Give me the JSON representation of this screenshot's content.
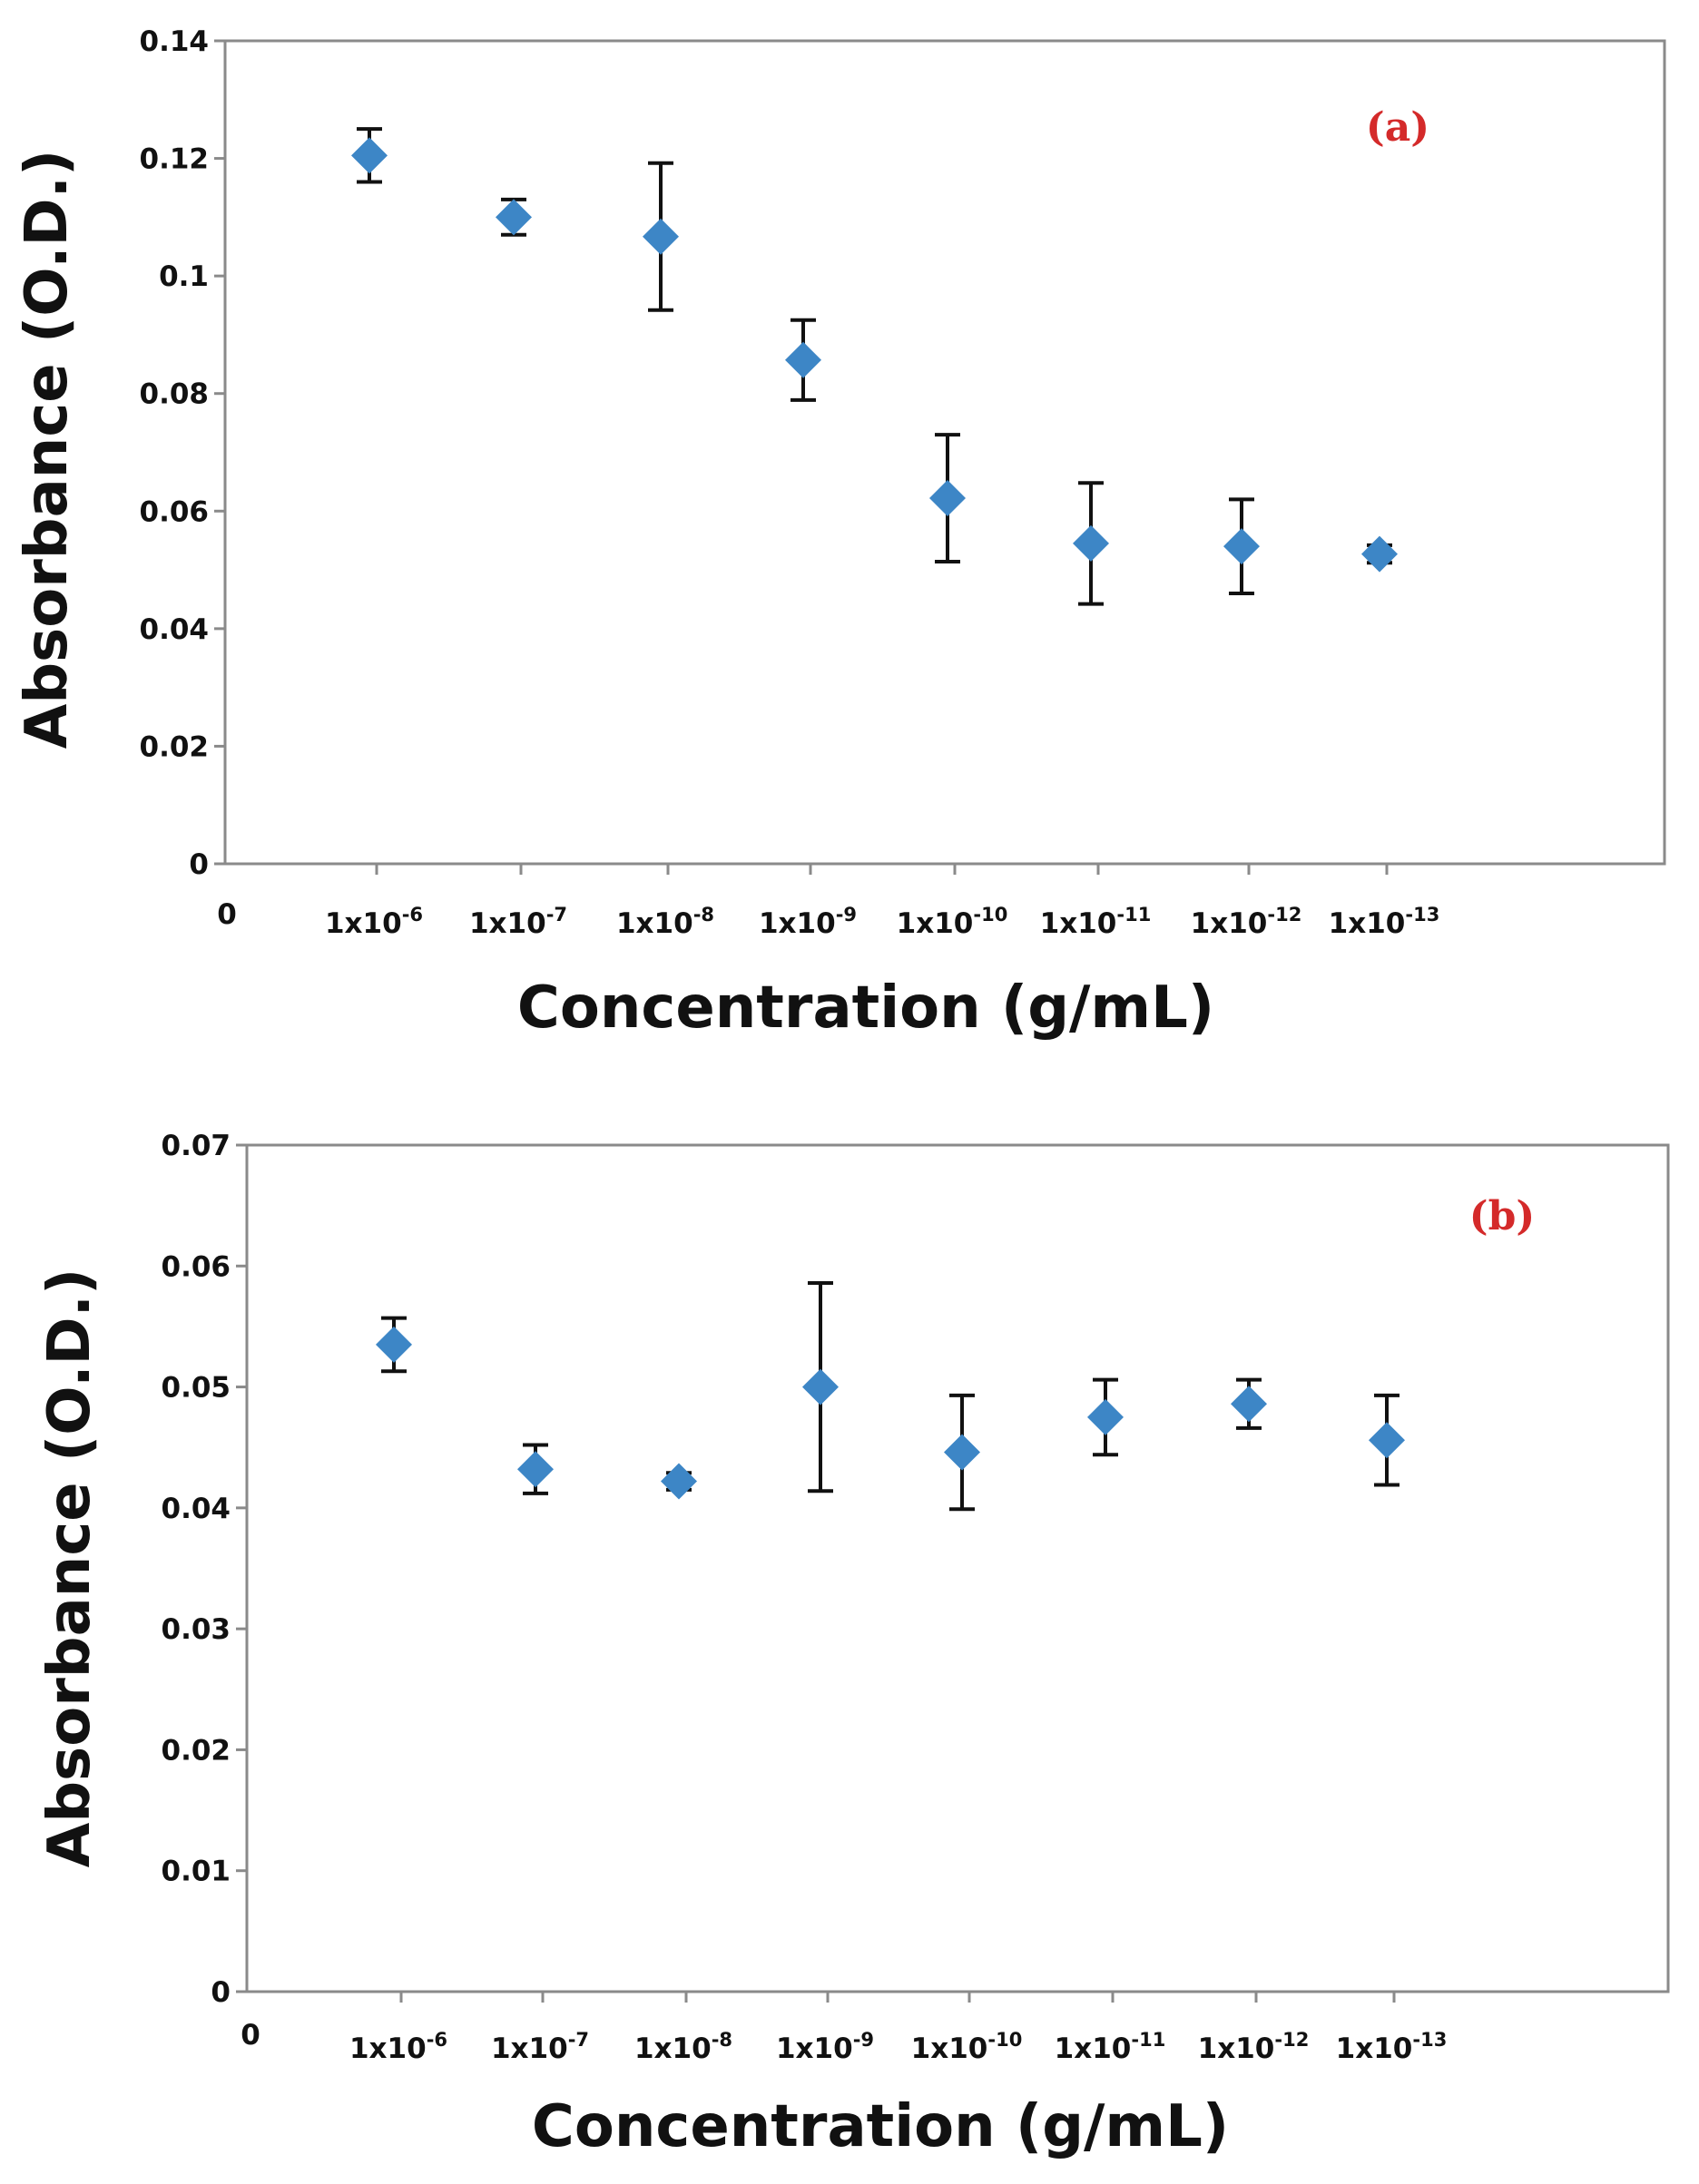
{
  "chart_data": [
    {
      "type": "scatter",
      "panel_label": "(a)",
      "title": "",
      "xlabel": "Concentration (g/mL)",
      "ylabel": "Absorbance (O.D.)",
      "x_origin_label": "0",
      "categories": [
        {
          "base": "1x10",
          "exp": "-6"
        },
        {
          "base": "1x10",
          "exp": "-7"
        },
        {
          "base": "1x10",
          "exp": "-8"
        },
        {
          "base": "1x10",
          "exp": "-9"
        },
        {
          "base": "1x10",
          "exp": "-10"
        },
        {
          "base": "1x10",
          "exp": "-11"
        },
        {
          "base": "1x10",
          "exp": "-12"
        },
        {
          "base": "1x10",
          "exp": "-13"
        }
      ],
      "values": [
        0.1205,
        0.11,
        0.1067,
        0.0857,
        0.0622,
        0.0545,
        0.054,
        0.0527
      ],
      "errors": [
        0.0045,
        0.003,
        0.0125,
        0.0068,
        0.0108,
        0.0103,
        0.008,
        0.0015
      ],
      "ylim": [
        0,
        0.14
      ],
      "yticks": [
        "0",
        "0.02",
        "0.04",
        "0.06",
        "0.08",
        "0.1",
        "0.12",
        "0.14"
      ],
      "grid": false,
      "marker_color": "#3d86c6"
    },
    {
      "type": "scatter",
      "panel_label": "(b)",
      "title": "",
      "xlabel": "Concentration (g/mL)",
      "ylabel": "Absorbance (O.D.)",
      "x_origin_label": "0",
      "categories": [
        {
          "base": "1x10",
          "exp": "-6"
        },
        {
          "base": "1x10",
          "exp": "-7"
        },
        {
          "base": "1x10",
          "exp": "-8"
        },
        {
          "base": "1x10",
          "exp": "-9"
        },
        {
          "base": "1x10",
          "exp": "-10"
        },
        {
          "base": "1x10",
          "exp": "-11"
        },
        {
          "base": "1x10",
          "exp": "-12"
        },
        {
          "base": "1x10",
          "exp": "-13"
        }
      ],
      "values": [
        0.0535,
        0.0432,
        0.0422,
        0.05,
        0.0446,
        0.0475,
        0.0486,
        0.0456
      ],
      "errors": [
        0.0022,
        0.002,
        0.0007,
        0.0086,
        0.0047,
        0.0031,
        0.002,
        0.0037
      ],
      "ylim": [
        0,
        0.07
      ],
      "yticks": [
        "0",
        "0.01",
        "0.02",
        "0.03",
        "0.04",
        "0.05",
        "0.06",
        "0.07"
      ],
      "grid": false,
      "marker_color": "#3d86c6"
    }
  ]
}
